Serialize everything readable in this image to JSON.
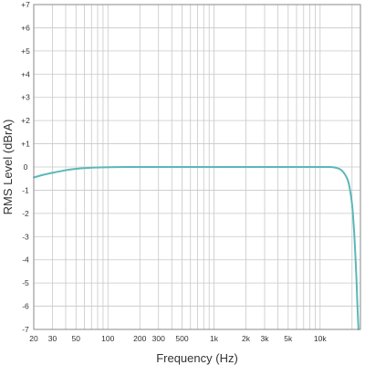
{
  "chart_data": {
    "type": "line",
    "title": "",
    "xlabel": "Frequency (Hz)",
    "ylabel": "RMS Level (dBrA)",
    "xscale": "log",
    "xlim": [
      20,
      24000
    ],
    "ylim": [
      -7,
      7
    ],
    "grid": true,
    "x_tick_values": [
      20,
      30,
      50,
      100,
      200,
      300,
      500,
      1000,
      2000,
      3000,
      5000,
      10000
    ],
    "x_tick_labels": [
      "20",
      "30",
      "50",
      "100",
      "200",
      "300",
      "500",
      "1k",
      "2k",
      "3k",
      "5k",
      "10k"
    ],
    "y_tick_values": [
      7,
      6,
      5,
      4,
      3,
      2,
      1,
      0,
      -1,
      -2,
      -3,
      -4,
      -5,
      -6,
      -7
    ],
    "y_tick_labels": [
      "+7",
      "+6",
      "+5",
      "+4",
      "+3",
      "+2",
      "+1",
      "0",
      "-1",
      "-2",
      "-3",
      "-4",
      "-5",
      "-6",
      "-7"
    ],
    "series": [
      {
        "color": "#5ab8b8",
        "x": [
          20,
          25,
          30,
          40,
          50,
          60,
          70,
          80,
          100,
          150,
          200,
          500,
          1000,
          5000,
          10000,
          12000,
          14000,
          16000,
          18000,
          19000,
          20000,
          21000,
          22000,
          22500,
          23000
        ],
        "y": [
          -0.45,
          -0.33,
          -0.25,
          -0.14,
          -0.08,
          -0.05,
          -0.03,
          -0.02,
          -0.01,
          0,
          0,
          0,
          0,
          0,
          0,
          0,
          -0.03,
          -0.15,
          -0.5,
          -0.9,
          -1.6,
          -2.9,
          -4.8,
          -6.0,
          -7.0
        ]
      }
    ]
  }
}
